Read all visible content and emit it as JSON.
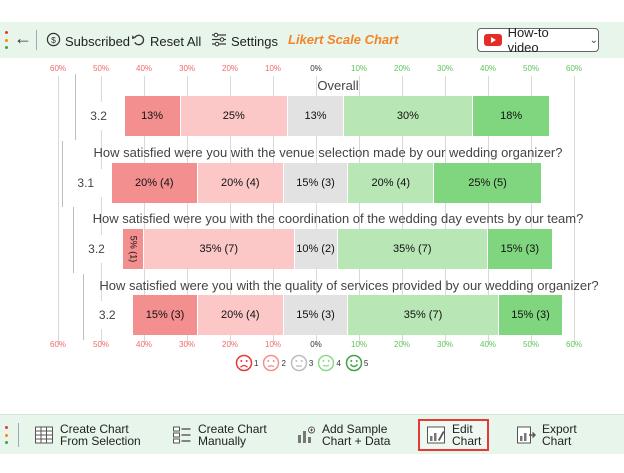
{
  "toolbar": {
    "subscribed_label": "Subscribed",
    "reset_label": "Reset All",
    "settings_label": "Settings",
    "title": "Likert Scale Chart",
    "howto_label": "How-to video"
  },
  "chart_data": {
    "type": "bar",
    "orientation": "horizontal-diverging",
    "axis_ticks": [
      "60%",
      "50%",
      "40%",
      "30%",
      "20%",
      "10%",
      "0%",
      "10%",
      "20%",
      "30%",
      "40%",
      "50%",
      "60%"
    ],
    "xlim": [
      -60,
      60
    ],
    "grid": true,
    "colors": [
      "#f48f8f",
      "#fcc7c7",
      "#e2e2e2",
      "#b8e6b4",
      "#7fd67f"
    ],
    "rows": [
      {
        "question": "Overall",
        "average": "3.2",
        "values": [
          13,
          25,
          13,
          30,
          18
        ],
        "labels": [
          "13%",
          "25%",
          "13%",
          "30%",
          "18%"
        ]
      },
      {
        "question": "How satisfied were you with the venue selection made by our wedding organizer?",
        "average": "3.1",
        "values": [
          20,
          20,
          15,
          20,
          25
        ],
        "labels": [
          "20% (4)",
          "20% (4)",
          "15% (3)",
          "20% (4)",
          "25% (5)"
        ]
      },
      {
        "question": "How satisfied were you with the coordination of the wedding day events by our team?",
        "average": "3.2",
        "values": [
          5,
          35,
          10,
          35,
          15
        ],
        "labels": [
          "5% (1)",
          "35% (7)",
          "10% (2)",
          "35% (7)",
          "15% (3)"
        ]
      },
      {
        "question": "How satisfied were you with the quality of services provided by our wedding organizer?",
        "average": "3.2",
        "values": [
          15,
          20,
          15,
          35,
          15
        ],
        "labels": [
          "15% (3)",
          "20% (4)",
          "15% (3)",
          "35% (7)",
          "15% (3)"
        ]
      }
    ],
    "legend": [
      "1",
      "2",
      "3",
      "4",
      "5"
    ],
    "legend_faces": [
      "very-sad-face-icon",
      "sad-face-icon",
      "neutral-face-icon",
      "happy-face-icon",
      "very-happy-face-icon"
    ]
  },
  "bottombar": {
    "create_selection_line1": "Create Chart",
    "create_selection_line2": "From Selection",
    "create_manual_line1": "Create Chart",
    "create_manual_line2": "Manually",
    "sample_line1": "Add Sample",
    "sample_line2": "Chart + Data",
    "edit_line1": "Edit",
    "edit_line2": "Chart",
    "export_line1": "Export",
    "export_line2": "Chart"
  }
}
